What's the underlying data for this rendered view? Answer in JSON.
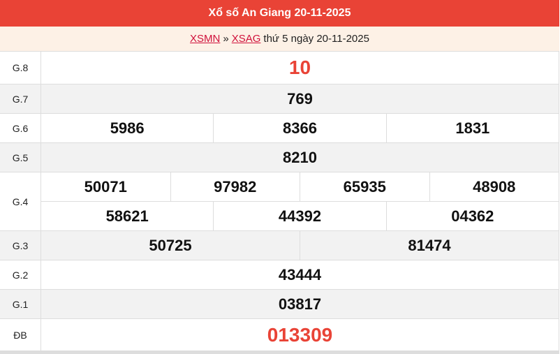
{
  "header": {
    "title": "Xổ số An Giang 20-11-2025"
  },
  "breadcrumb": {
    "link1": "XSMN",
    "sep": "»",
    "link2": "XSAG",
    "text": "thứ 5 ngày 20-11-2025"
  },
  "colors": {
    "header_bg": "#e94336",
    "highlight": "#e94336",
    "sub_bg": "#fdf1e6"
  },
  "prizes": [
    {
      "label": "G.8",
      "lines": [
        [
          "10"
        ]
      ]
    },
    {
      "label": "G.7",
      "lines": [
        [
          "769"
        ]
      ]
    },
    {
      "label": "G.6",
      "lines": [
        [
          "5986",
          "8366",
          "1831"
        ]
      ]
    },
    {
      "label": "G.5",
      "lines": [
        [
          "8210"
        ]
      ]
    },
    {
      "label": "G.4",
      "lines": [
        [
          "50071",
          "97982",
          "65935",
          "48908"
        ],
        [
          "58621",
          "44392",
          "04362"
        ]
      ]
    },
    {
      "label": "G.3",
      "lines": [
        [
          "50725",
          "81474"
        ]
      ]
    },
    {
      "label": "G.2",
      "lines": [
        [
          "43444"
        ]
      ]
    },
    {
      "label": "G.1",
      "lines": [
        [
          "03817"
        ]
      ]
    },
    {
      "label": "ĐB",
      "lines": [
        [
          "013309"
        ]
      ]
    }
  ]
}
